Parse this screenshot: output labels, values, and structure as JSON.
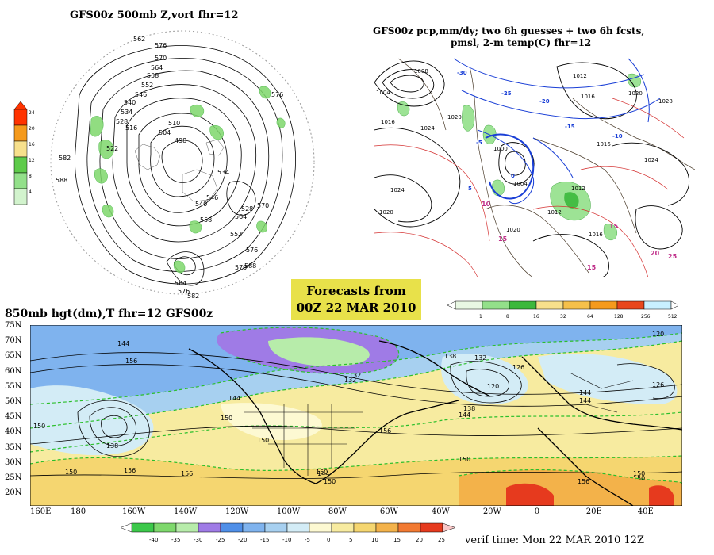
{
  "panels": {
    "top_left": {
      "title": "GFS00z  500mb Z,vort   fhr=12",
      "contour_labels": [
        "562",
        "576",
        "570",
        "576",
        "564",
        "558",
        "552",
        "546",
        "540",
        "534",
        "528",
        "522",
        "516",
        "510",
        "504",
        "498",
        "576",
        "582",
        "588",
        "570",
        "564",
        "558",
        "552",
        "528",
        "546",
        "540",
        "534",
        "576",
        "570",
        "564",
        "582",
        "588"
      ],
      "colorbar_ticks": [
        "24",
        "20",
        "16",
        "12",
        "8",
        "4"
      ],
      "colorbar_colors": [
        "#ff3300",
        "#f59a1c",
        "#f7e08c",
        "#5ecb4a",
        "#93e08a",
        "#d2f3cd"
      ]
    },
    "top_right": {
      "title_line1": "GFS00z pcp,mm/dy; two 6h guesses + two 6h fcsts,",
      "title_line2": "pmsl, 2-m temp(C)  fhr=12",
      "pressure_labels": [
        "1008",
        "1004",
        "1016",
        "1020",
        "1024",
        "1012",
        "1016",
        "1020",
        "1024",
        "1028",
        "1020",
        "1012",
        "1016",
        "1020",
        "1012",
        "1016",
        "1024",
        "1004",
        "1000"
      ],
      "temp_labels": [
        "-30",
        "-25",
        "-20",
        "-15",
        "-10",
        "-5",
        "0",
        "5",
        "10",
        "15",
        "20",
        "25"
      ],
      "colorbar_ticks": [
        "1",
        "8",
        "16",
        "32",
        "64",
        "128",
        "256",
        "512"
      ],
      "colorbar_colors": [
        "#e8f7e3",
        "#93e08a",
        "#3cb83c",
        "#f7e08c",
        "#f5c04a",
        "#f59a1c",
        "#e8471c",
        "#c8f0ff"
      ]
    },
    "center_box": {
      "line1": "Forecasts from",
      "line2": "00Z 22 MAR 2010"
    },
    "bottom": {
      "title": "850mb hgt(dm),T   fhr=12 GFS00z",
      "lat_labels": [
        "75N",
        "70N",
        "65N",
        "60N",
        "55N",
        "50N",
        "45N",
        "40N",
        "35N",
        "30N",
        "25N",
        "20N"
      ],
      "lon_labels": [
        "160E",
        "180",
        "160W",
        "140W",
        "120W",
        "100W",
        "80W",
        "60W",
        "40W",
        "20W",
        "0",
        "20E",
        "40E"
      ],
      "height_labels": [
        "144",
        "156",
        "150",
        "138",
        "144",
        "150",
        "150",
        "156",
        "150",
        "132",
        "138",
        "132",
        "126",
        "120",
        "138",
        "144",
        "156",
        "150",
        "150",
        "144",
        "150",
        "156",
        "126",
        "120",
        "144",
        "144",
        "150",
        "156",
        "150",
        "132"
      ],
      "colorbar_ticks": [
        "-40",
        "-35",
        "-30",
        "-25",
        "-20",
        "-15",
        "-10",
        "-5",
        "0",
        "5",
        "10",
        "15",
        "20",
        "25"
      ],
      "colorbar_colors": [
        "#3cc84a",
        "#7ed86c",
        "#b7ecaa",
        "#9f7be6",
        "#4f8fe8",
        "#7fb3ee",
        "#a7d0f0",
        "#d3ecf6",
        "#fdf9d2",
        "#f7eba0",
        "#f5d670",
        "#f3b24a",
        "#f27a32",
        "#e63a1e"
      ],
      "verif_time": "verif time: Mon 22 MAR 2010 12Z"
    }
  }
}
